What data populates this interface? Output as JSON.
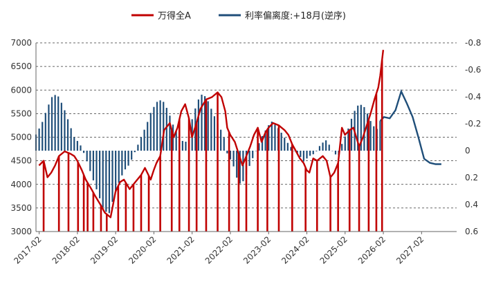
{
  "chart_data": {
    "type": "line",
    "legend": {
      "position": "top",
      "items": [
        {
          "label": "万得全A",
          "color": "#c00000"
        },
        {
          "label": "利率偏离度:+18月(逆序)",
          "color": "#1f4e79"
        }
      ]
    },
    "x_ticks": [
      "2017-02",
      "2018-02",
      "2019-02",
      "2020-02",
      "2021-02",
      "2022-02",
      "2023-02",
      "2024-02",
      "2025-02",
      "2026-02",
      "2027-02"
    ],
    "y_left": {
      "min": 3000,
      "max": 7000,
      "ticks": [
        "7000",
        "6500",
        "6000",
        "5500",
        "5000",
        "4500",
        "4000",
        "3500",
        "3000"
      ]
    },
    "y_right": {
      "min": -0.8,
      "max": 0.6,
      "inverted": true,
      "ticks": [
        "-0.8",
        "-0.6",
        "-0.4",
        "-0.2",
        "0",
        "0.2",
        "0.4",
        "0.6"
      ]
    },
    "grid": "dashed horizontal",
    "series": [
      {
        "name": "万得全A",
        "axis": "left",
        "color": "#c00000",
        "x": [
          2017.08,
          2017.2,
          2017.3,
          2017.4,
          2017.5,
          2017.6,
          2017.75,
          2017.9,
          2018.0,
          2018.08,
          2018.2,
          2018.3,
          2018.45,
          2018.55,
          2018.7,
          2018.8,
          2018.95,
          2019.0,
          2019.08,
          2019.2,
          2019.3,
          2019.45,
          2019.6,
          2019.75,
          2019.85,
          2020.0,
          2020.08,
          2020.15,
          2020.25,
          2020.35,
          2020.5,
          2020.6,
          2020.7,
          2020.8,
          2020.9,
          2021.0,
          2021.08,
          2021.2,
          2021.3,
          2021.45,
          2021.6,
          2021.75,
          2021.85,
          2021.95,
          2022.0,
          2022.08,
          2022.2,
          2022.3,
          2022.4,
          2022.5,
          2022.6,
          2022.7,
          2022.8,
          2022.9,
          2023.0,
          2023.08,
          2023.2,
          2023.35,
          2023.5,
          2023.6,
          2023.7,
          2023.8,
          2023.9,
          2024.0,
          2024.08,
          2024.15,
          2024.25,
          2024.35,
          2024.5,
          2024.6,
          2024.7,
          2024.75,
          2024.8,
          2024.9,
          2025.0,
          2025.08,
          2025.2,
          2025.3,
          2025.45,
          2025.55,
          2025.65,
          2025.75,
          2025.85,
          2025.95,
          2026.0,
          2026.08
        ],
        "values": [
          4400,
          4500,
          4150,
          4250,
          4400,
          4600,
          4700,
          4650,
          4600,
          4500,
          4300,
          4100,
          3900,
          3750,
          3550,
          3400,
          3300,
          3500,
          3850,
          4050,
          4100,
          3900,
          4050,
          4200,
          4350,
          4100,
          4300,
          4450,
          4600,
          5150,
          5300,
          5000,
          5200,
          5550,
          5700,
          5400,
          5000,
          5300,
          5600,
          5800,
          5850,
          5950,
          5850,
          5550,
          5200,
          5050,
          4900,
          4650,
          4400,
          4600,
          4800,
          5050,
          5200,
          4900,
          5100,
          5200,
          5300,
          5250,
          5150,
          5050,
          4850,
          4700,
          4550,
          4450,
          4300,
          4250,
          4550,
          4500,
          4600,
          4500,
          4150,
          4200,
          4250,
          4450,
          5200,
          5050,
          5150,
          5200,
          4800,
          5000,
          5250,
          5500,
          5800,
          6050,
          6300,
          6850
        ]
      },
      {
        "name": "利率偏离度:+18月(逆序)",
        "axis": "right",
        "color": "#1f4e79",
        "x": [
          2017.0,
          2017.15,
          2017.3,
          2017.45,
          2017.6,
          2017.75,
          2017.9,
          2018.0,
          2018.15,
          2018.3,
          2018.45,
          2018.6,
          2018.75,
          2018.9,
          2019.0,
          2019.15,
          2019.3,
          2019.45,
          2019.6,
          2019.75,
          2019.9,
          2020.0,
          2020.15,
          2020.3,
          2020.45,
          2020.6,
          2020.75,
          2020.9,
          2021.0,
          2021.15,
          2021.3,
          2021.45,
          2021.6,
          2021.75,
          2021.9,
          2022.0,
          2022.15,
          2022.3,
          2022.45,
          2022.6,
          2022.75,
          2022.9,
          2023.0,
          2023.15,
          2023.3,
          2023.45,
          2023.6,
          2023.75,
          2023.9,
          2024.0,
          2024.15,
          2024.3,
          2024.45,
          2024.6,
          2024.75,
          2024.9,
          2025.0,
          2025.15,
          2025.3,
          2025.45,
          2025.6,
          2025.75,
          2025.9,
          2026.0,
          2026.1,
          2026.25,
          2026.4,
          2026.55,
          2026.7,
          2026.85,
          2027.0,
          2027.15,
          2027.3,
          2027.45,
          2027.6
        ],
        "values": [
          -0.12,
          -0.2,
          -0.32,
          -0.42,
          -0.4,
          -0.3,
          -0.18,
          -0.1,
          -0.05,
          0.05,
          0.18,
          0.3,
          0.42,
          0.48,
          0.38,
          0.25,
          0.15,
          0.1,
          0.0,
          -0.1,
          -0.2,
          -0.28,
          -0.36,
          -0.38,
          -0.3,
          -0.18,
          -0.1,
          -0.05,
          -0.15,
          -0.3,
          -0.42,
          -0.4,
          -0.3,
          -0.2,
          -0.12,
          0.02,
          0.1,
          0.25,
          0.22,
          0.1,
          0.0,
          -0.1,
          -0.15,
          -0.22,
          -0.18,
          -0.12,
          -0.05,
          0.0,
          0.04,
          0.08,
          0.04,
          0.02,
          -0.05,
          -0.08,
          0.0,
          0.05,
          -0.05,
          -0.15,
          -0.28,
          -0.35,
          -0.32,
          -0.22,
          -0.15,
          -0.22,
          -0.25,
          -0.24,
          -0.3,
          -0.44,
          -0.35,
          -0.25,
          -0.1,
          0.06,
          0.09,
          0.1,
          0.1
        ]
      }
    ]
  }
}
